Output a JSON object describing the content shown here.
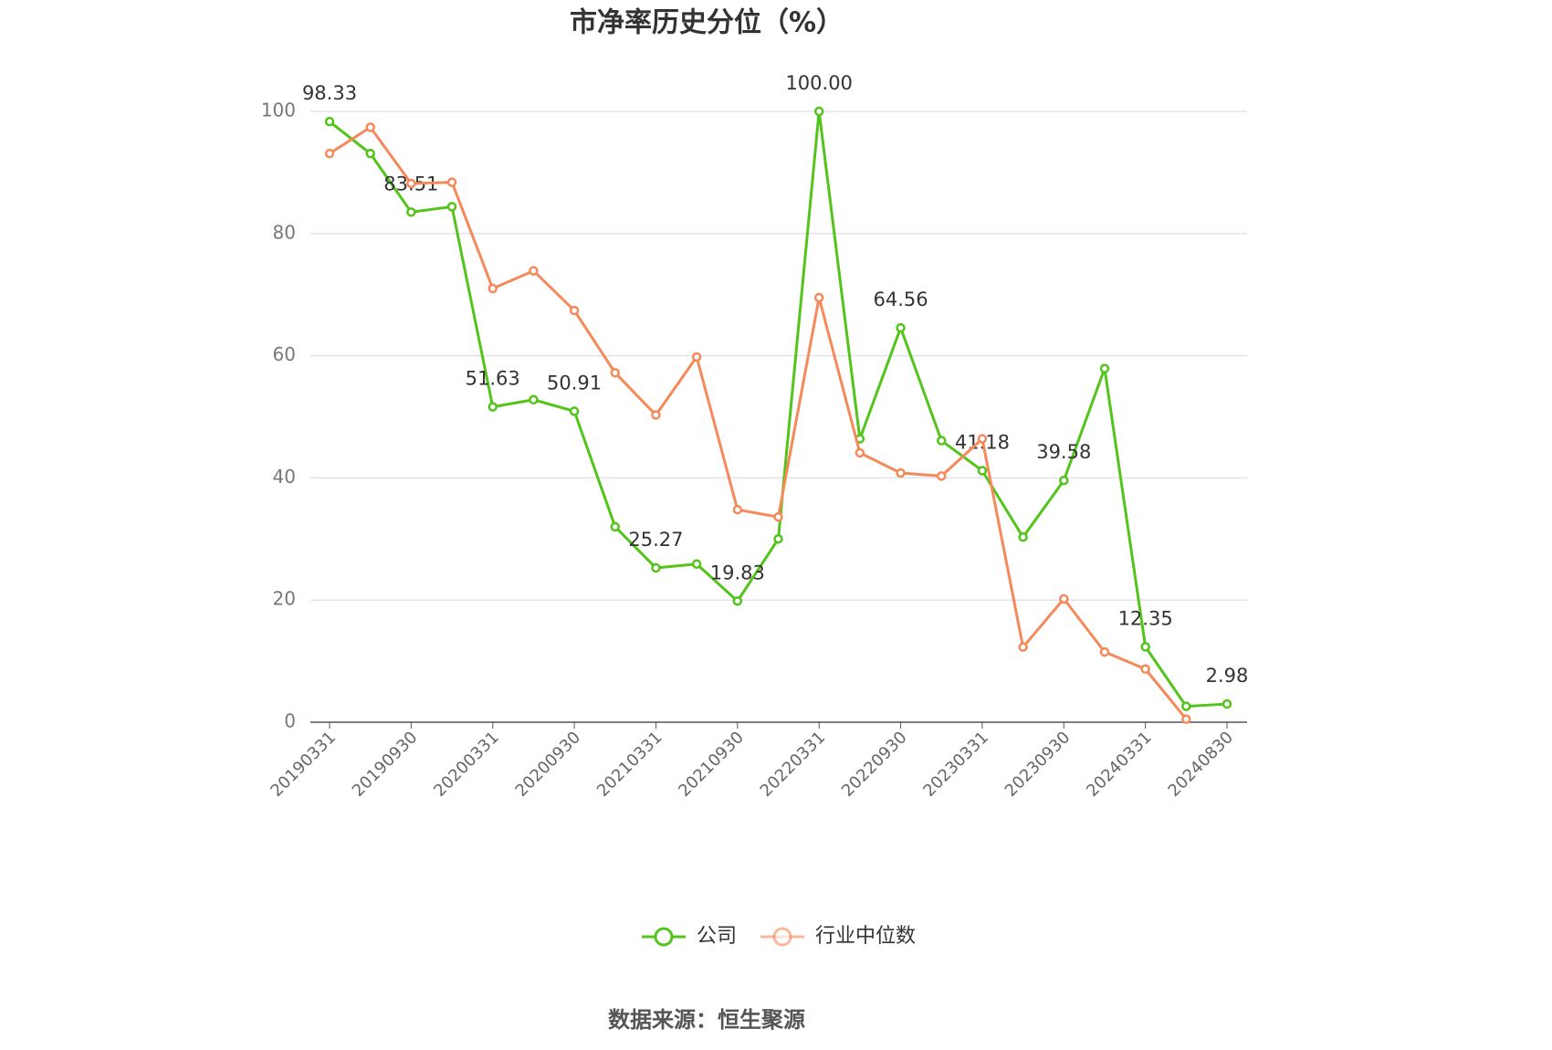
{
  "chart_data": {
    "type": "line",
    "title": "市净率历史分位（%）",
    "categories": [
      "20190331",
      null,
      "20190930",
      null,
      "20200331",
      null,
      "20200930",
      null,
      "20210331",
      null,
      "20210930",
      null,
      "20220331",
      null,
      "20220930",
      null,
      "20230331",
      null,
      "20230930",
      null,
      "20240331",
      null,
      "20240830"
    ],
    "series": [
      {
        "name": "公司",
        "color": "#52c41a",
        "values": [
          98.33,
          93.1,
          83.51,
          84.4,
          51.63,
          52.8,
          50.91,
          32.0,
          25.27,
          25.9,
          19.83,
          30.0,
          100,
          46.4,
          64.56,
          46.1,
          41.18,
          30.3,
          39.58,
          57.9,
          12.35,
          2.6,
          2.98
        ],
        "value_labels": [
          "98.33",
          null,
          "83.51",
          null,
          "51.63",
          null,
          "50.91",
          null,
          "25.27",
          null,
          "19.83",
          null,
          "100.00",
          null,
          "64.56",
          null,
          "41.18",
          null,
          "39.58",
          null,
          "12.35",
          null,
          "2.98"
        ]
      },
      {
        "name": "行业中位数",
        "color": "#f5895a",
        "values": [
          93.1,
          97.4,
          88.2,
          88.4,
          71.0,
          73.9,
          67.4,
          57.2,
          50.3,
          59.8,
          34.8,
          33.6,
          69.5,
          44.1,
          40.8,
          40.3,
          46.4,
          12.3,
          20.2,
          11.5,
          8.7,
          0.5,
          null
        ]
      }
    ],
    "ylim": [
      0,
      100
    ],
    "yticks": [
      0,
      20,
      40,
      60,
      80,
      100
    ],
    "grid": true,
    "legend": "bottom",
    "source": "数据来源：恒生聚源"
  }
}
